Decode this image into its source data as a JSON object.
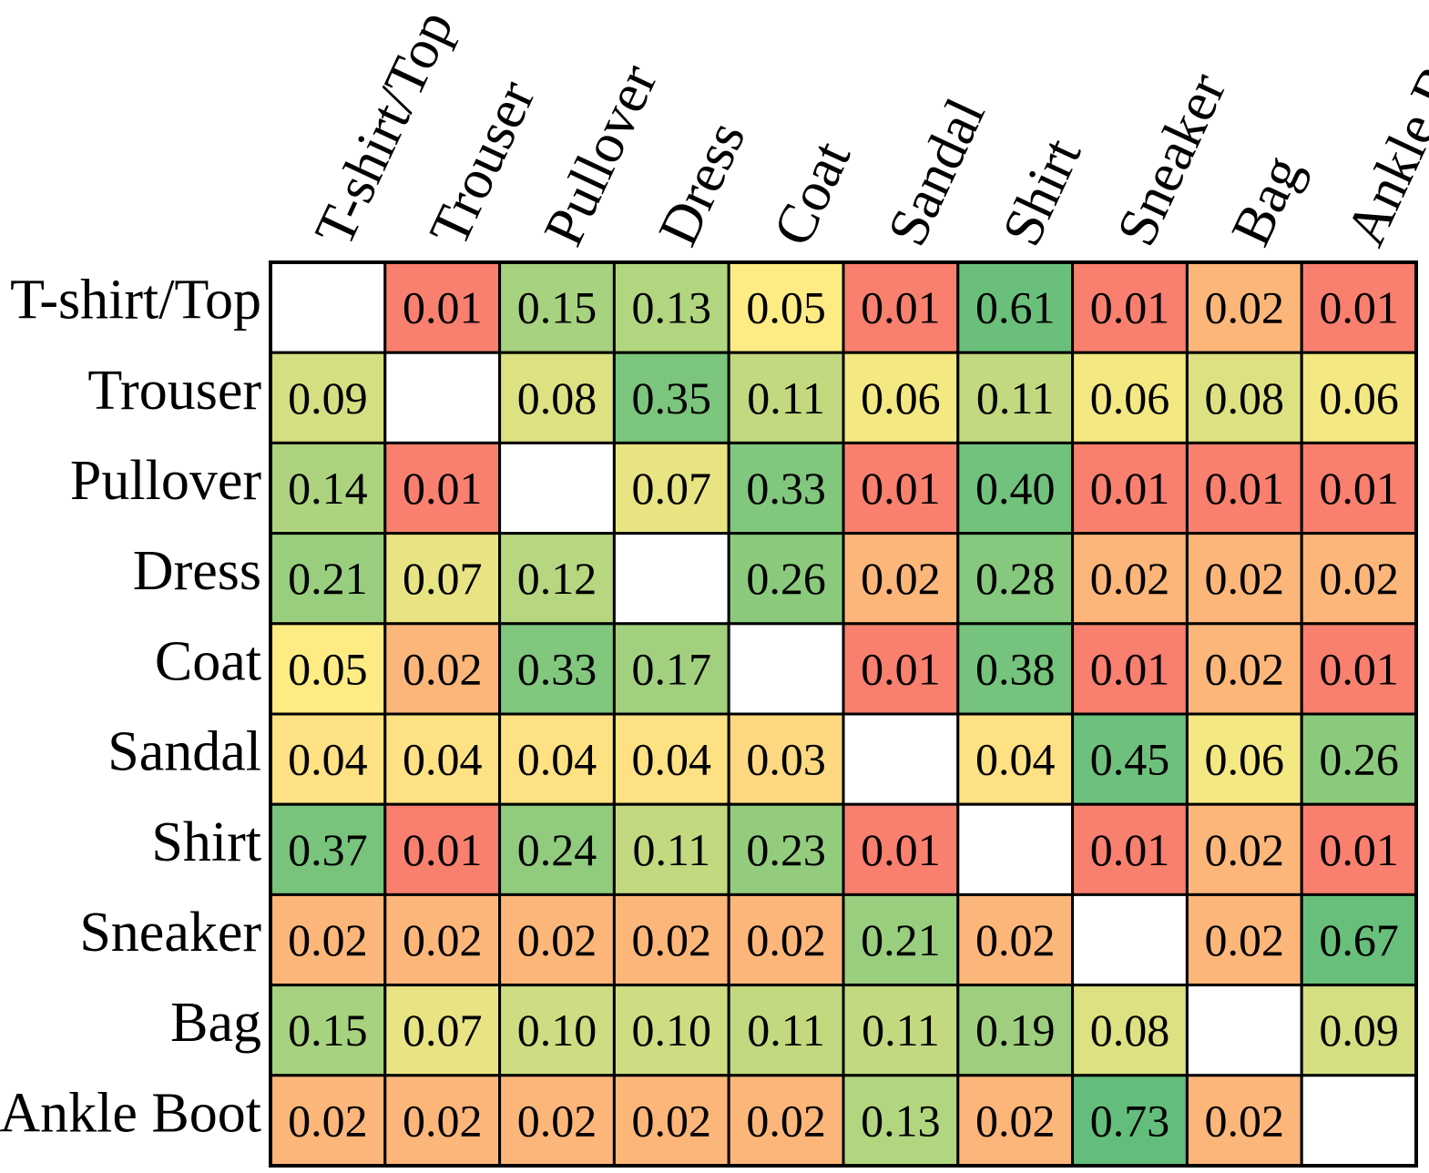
{
  "chart_data": {
    "type": "heatmap",
    "title": "",
    "xlabel": "",
    "ylabel": "",
    "row_labels": [
      "T-shirt/Top",
      "Trouser",
      "Pullover",
      "Dress",
      "Coat",
      "Sandal",
      "Shirt",
      "Sneaker",
      "Bag",
      "Ankle Boot"
    ],
    "col_labels": [
      "T-shirt/Top",
      "Trouser",
      "Pullover",
      "Dress",
      "Coat",
      "Sandal",
      "Shirt",
      "Sneaker",
      "Bag",
      "Ankle Boot"
    ],
    "values": [
      [
        null,
        0.01,
        0.15,
        0.13,
        0.05,
        0.01,
        0.61,
        0.01,
        0.02,
        0.01
      ],
      [
        0.09,
        null,
        0.08,
        0.35,
        0.11,
        0.06,
        0.11,
        0.06,
        0.08,
        0.06
      ],
      [
        0.14,
        0.01,
        null,
        0.07,
        0.33,
        0.01,
        0.4,
        0.01,
        0.01,
        0.01
      ],
      [
        0.21,
        0.07,
        0.12,
        null,
        0.26,
        0.02,
        0.28,
        0.02,
        0.02,
        0.02
      ],
      [
        0.05,
        0.02,
        0.33,
        0.17,
        null,
        0.01,
        0.38,
        0.01,
        0.02,
        0.01
      ],
      [
        0.04,
        0.04,
        0.04,
        0.04,
        0.03,
        null,
        0.04,
        0.45,
        0.06,
        0.26
      ],
      [
        0.37,
        0.01,
        0.24,
        0.11,
        0.23,
        0.01,
        null,
        0.01,
        0.02,
        0.01
      ],
      [
        0.02,
        0.02,
        0.02,
        0.02,
        0.02,
        0.21,
        0.02,
        null,
        0.02,
        0.67
      ],
      [
        0.15,
        0.07,
        0.1,
        0.1,
        0.11,
        0.11,
        0.19,
        0.08,
        null,
        0.09
      ],
      [
        0.02,
        0.02,
        0.02,
        0.02,
        0.02,
        0.13,
        0.02,
        0.73,
        0.02,
        null
      ]
    ],
    "colormap": {
      "low": "#f8696b",
      "mid": "#ffeb84",
      "high": "#63be7b",
      "diagonal": "#ffffff",
      "border": "#000000"
    },
    "legend": "none",
    "grid": true
  }
}
